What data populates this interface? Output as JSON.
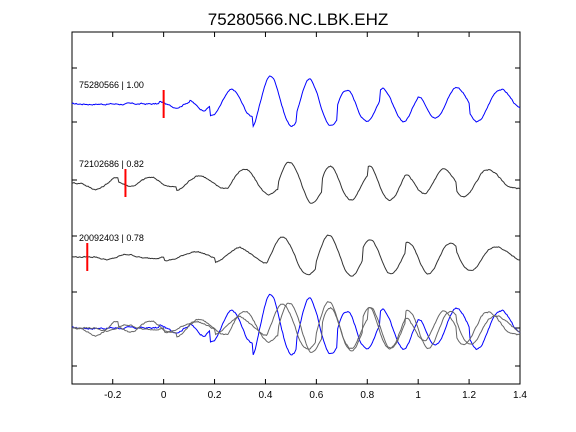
{
  "chart_data": {
    "type": "line",
    "title": "75280566.NC.LBK.EHZ",
    "xlabel": "",
    "ylabel": "",
    "xlim": [
      -0.36,
      1.4
    ],
    "x_ticks": [
      -0.2,
      0,
      0.2,
      0.4,
      0.6,
      0.8,
      1,
      1.2,
      1.4
    ],
    "x_tick_labels": [
      "-0.2",
      "0",
      "0.2",
      "0.4",
      "0.6",
      "0.8",
      "1",
      "1.2",
      "1.4"
    ],
    "grid": false,
    "colors": {
      "primary": "#0000ff",
      "secondary": "#333333",
      "pick": "#ff0000",
      "overlay": "#666666"
    },
    "traces": [
      {
        "label": "75280566 | 1.00",
        "color": "#0000ff",
        "pick_time": 0.0,
        "onset_time": 0.0,
        "noise_amplitude": 0.05,
        "events": [
          {
            "t": 0.08,
            "a": 0.15,
            "f": 7
          },
          {
            "t": 0.2,
            "a": 0.3,
            "f": 7
          },
          {
            "t": 0.28,
            "a": 0.8,
            "f": 6.5
          },
          {
            "t": 0.45,
            "a": 1.0,
            "f": 5.5
          },
          {
            "t": 0.62,
            "a": 0.95,
            "f": 5
          },
          {
            "t": 0.78,
            "a": 0.9,
            "f": 5
          },
          {
            "t": 0.95,
            "a": 0.85,
            "f": 5
          },
          {
            "t": 1.1,
            "a": 1.0,
            "f": 5
          },
          {
            "t": 1.3,
            "a": 0.6,
            "f": 4.5
          }
        ]
      },
      {
        "label": "72102686 | 0.82",
        "color": "#333333",
        "pick_time": -0.15,
        "onset_time": -0.3,
        "noise_amplitude": 0.05,
        "events": [
          {
            "t": -0.22,
            "a": 0.3,
            "f": 5
          },
          {
            "t": -0.08,
            "a": 0.35,
            "f": 5
          },
          {
            "t": 0.15,
            "a": 0.3,
            "f": 5
          },
          {
            "t": 0.35,
            "a": 0.6,
            "f": 4.5
          },
          {
            "t": 0.55,
            "a": 0.95,
            "f": 5
          },
          {
            "t": 0.72,
            "a": 0.8,
            "f": 5
          },
          {
            "t": 0.9,
            "a": 0.75,
            "f": 5
          },
          {
            "t": 1.05,
            "a": 0.8,
            "f": 5
          },
          {
            "t": 1.25,
            "a": 0.55,
            "f": 4
          }
        ]
      },
      {
        "label": "20092403 | 0.78",
        "color": "#333333",
        "pick_time": -0.3,
        "onset_time": -0.3,
        "noise_amplitude": 0.04,
        "events": [
          {
            "t": -0.18,
            "a": 0.12,
            "f": 6
          },
          {
            "t": 0.1,
            "a": 0.25,
            "f": 4
          },
          {
            "t": 0.3,
            "a": 0.45,
            "f": 4
          },
          {
            "t": 0.5,
            "a": 1.0,
            "f": 4.5
          },
          {
            "t": 0.7,
            "a": 0.9,
            "f": 5
          },
          {
            "t": 0.88,
            "a": 0.75,
            "f": 5
          },
          {
            "t": 1.05,
            "a": 0.8,
            "f": 5
          },
          {
            "t": 1.25,
            "a": 0.5,
            "f": 4
          }
        ]
      }
    ]
  }
}
